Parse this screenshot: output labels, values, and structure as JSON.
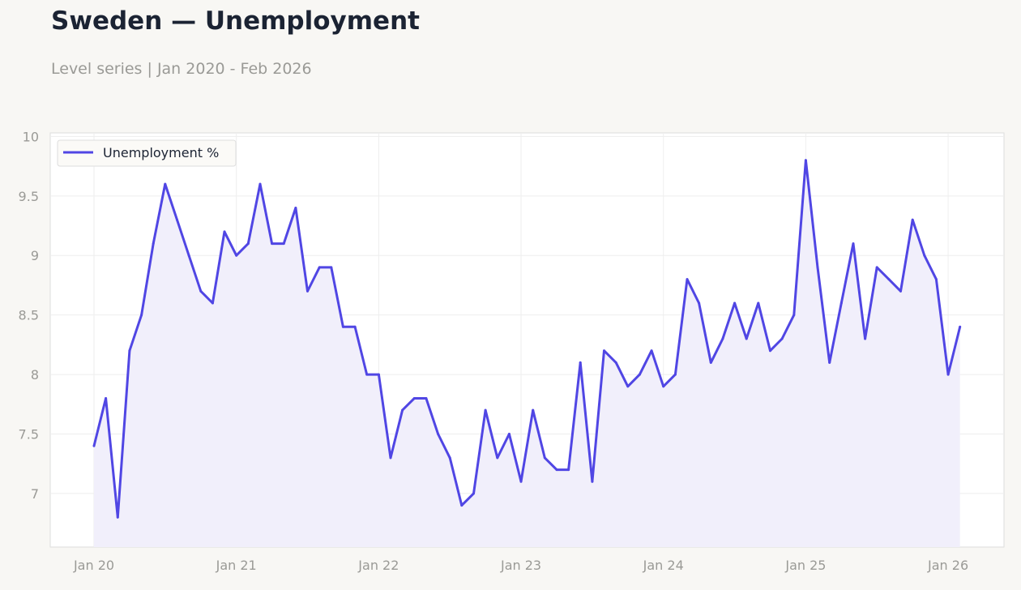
{
  "chart_data": {
    "type": "line",
    "title": "Sweden — Unemployment",
    "subtitle": "Level series | Jan 2020 - Feb 2026",
    "xlabel": "",
    "ylabel": "",
    "ylim": [
      6.55,
      10.03
    ],
    "y_ticks": [
      7,
      7.5,
      8,
      8.5,
      9,
      9.5,
      10
    ],
    "y_tick_labels": [
      "7",
      "7.5",
      "8",
      "8.5",
      "9",
      "9.5",
      "10"
    ],
    "x_ticks": [
      "Jan 20",
      "Jan 21",
      "Jan 22",
      "Jan 23",
      "Jan 24",
      "Jan 25",
      "Jan 26"
    ],
    "x_range": [
      "2020-01",
      "2026-02"
    ],
    "grid": true,
    "legend": "top-left",
    "colors": {
      "line": "#5046e4",
      "fill": "#f1effb",
      "plot_bg": "#ffffff",
      "page_bg": "#f8f7f4",
      "grid": "#eeeeee",
      "frame": "#dddddd"
    },
    "series": [
      {
        "name": "Unemployment %",
        "x": [
          "2020-01",
          "2020-02",
          "2020-03",
          "2020-04",
          "2020-05",
          "2020-06",
          "2020-07",
          "2020-08",
          "2020-09",
          "2020-10",
          "2020-11",
          "2020-12",
          "2021-01",
          "2021-02",
          "2021-03",
          "2021-04",
          "2021-05",
          "2021-06",
          "2021-07",
          "2021-08",
          "2021-09",
          "2021-10",
          "2021-11",
          "2021-12",
          "2022-01",
          "2022-02",
          "2022-03",
          "2022-04",
          "2022-05",
          "2022-06",
          "2022-07",
          "2022-08",
          "2022-09",
          "2022-10",
          "2022-11",
          "2022-12",
          "2023-01",
          "2023-02",
          "2023-03",
          "2023-04",
          "2023-05",
          "2023-06",
          "2023-07",
          "2023-08",
          "2023-09",
          "2023-10",
          "2023-11",
          "2023-12",
          "2024-01",
          "2024-02",
          "2024-03",
          "2024-04",
          "2024-05",
          "2024-06",
          "2024-07",
          "2024-08",
          "2024-09",
          "2024-10",
          "2024-11",
          "2024-12",
          "2025-01",
          "2025-02",
          "2025-03",
          "2025-04",
          "2025-05",
          "2025-06",
          "2025-07",
          "2025-08",
          "2025-09",
          "2025-10",
          "2025-11",
          "2025-12",
          "2026-01",
          "2026-02"
        ],
        "values": [
          7.4,
          7.8,
          6.8,
          8.2,
          8.5,
          9.1,
          9.6,
          9.3,
          9.0,
          8.7,
          8.6,
          9.2,
          9.0,
          9.1,
          9.6,
          9.1,
          9.1,
          9.4,
          8.7,
          8.9,
          8.9,
          8.4,
          8.4,
          8.0,
          8.0,
          7.3,
          7.7,
          7.8,
          7.8,
          7.5,
          7.3,
          6.9,
          7.0,
          7.7,
          7.3,
          7.5,
          7.1,
          7.7,
          7.3,
          7.2,
          7.2,
          8.1,
          7.1,
          8.2,
          8.1,
          7.9,
          8.0,
          8.2,
          7.9,
          8.0,
          8.8,
          8.6,
          8.1,
          8.3,
          8.6,
          8.3,
          8.6,
          8.2,
          8.3,
          8.5,
          9.8,
          8.9,
          8.1,
          8.6,
          9.1,
          8.3,
          8.9,
          8.8,
          8.7,
          9.3,
          9.0,
          8.8,
          8.0,
          8.4
        ]
      }
    ]
  }
}
